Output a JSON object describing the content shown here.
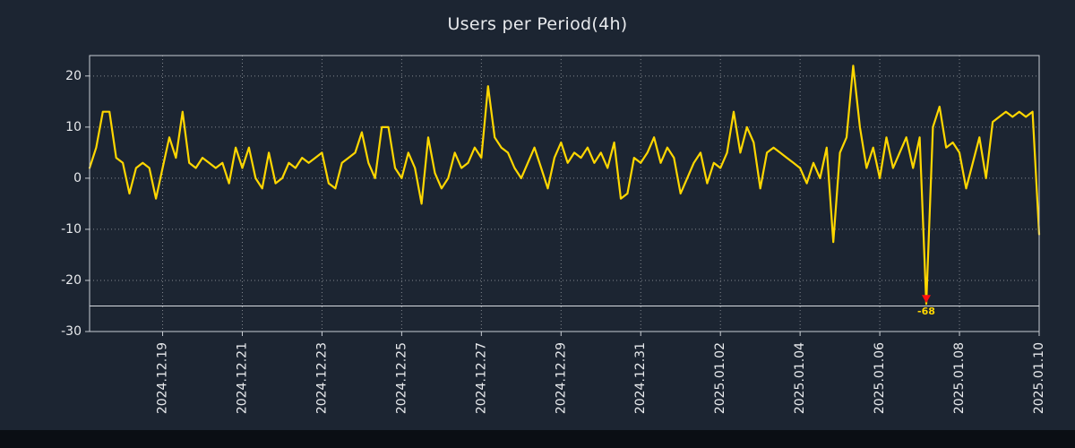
{
  "chart_data": {
    "type": "line",
    "title": "Users per Period(4h)",
    "xlabel": "",
    "ylabel": "",
    "ylim": [
      -30,
      24
    ],
    "y_ticks": [
      20,
      10,
      0,
      -10,
      -20,
      -30
    ],
    "x_tick_labels": [
      "2024.12.19",
      "2024.12.21",
      "2024.12.23",
      "2024.12.25",
      "2024.12.27",
      "2024.12.29",
      "2024.12.31",
      "2025.01.02",
      "2025.01.04",
      "2025.01.06",
      "2025.01.08",
      "2025.01.10"
    ],
    "x_first_tick_index": 11,
    "x_tick_step": 12,
    "grid": true,
    "legend": "none",
    "line_color": "#ffd700",
    "marker_color": "#ff0f0f",
    "threshold_line": -25,
    "clip_floor": -24.6,
    "min_annotation_label": "-68",
    "min_annotation_value": -68,
    "values": [
      2,
      6,
      13,
      13,
      4,
      3,
      -3,
      2,
      3,
      2,
      -4,
      2,
      8,
      4,
      13,
      3,
      2,
      4,
      3,
      2,
      3,
      -1,
      6,
      2,
      6,
      0,
      -2,
      5,
      -1,
      0,
      3,
      2,
      4,
      3,
      4,
      5,
      -1,
      -2,
      3,
      4,
      5,
      9,
      3,
      0,
      10,
      10,
      2,
      0,
      5,
      2,
      -5,
      8,
      1,
      -2,
      0,
      5,
      2,
      3,
      6,
      4,
      18,
      8,
      6,
      5,
      2,
      0,
      3,
      6,
      2,
      -2,
      4,
      7,
      3,
      5,
      4,
      6,
      3,
      5,
      2,
      7,
      -4,
      -3,
      4,
      3,
      5,
      8,
      3,
      6,
      4,
      -3,
      0,
      3,
      5,
      -1,
      3,
      2,
      5,
      13,
      5,
      10,
      7,
      -2,
      5,
      6,
      5,
      4,
      3,
      2,
      -1,
      3,
      0,
      6,
      -12.5,
      5,
      8,
      22,
      10,
      2,
      6,
      0,
      8,
      2,
      5,
      8,
      2,
      8,
      -68,
      10,
      14,
      6,
      7,
      5,
      -2,
      3,
      8,
      0,
      11,
      12,
      13,
      12,
      13,
      12,
      13,
      -11
    ]
  }
}
